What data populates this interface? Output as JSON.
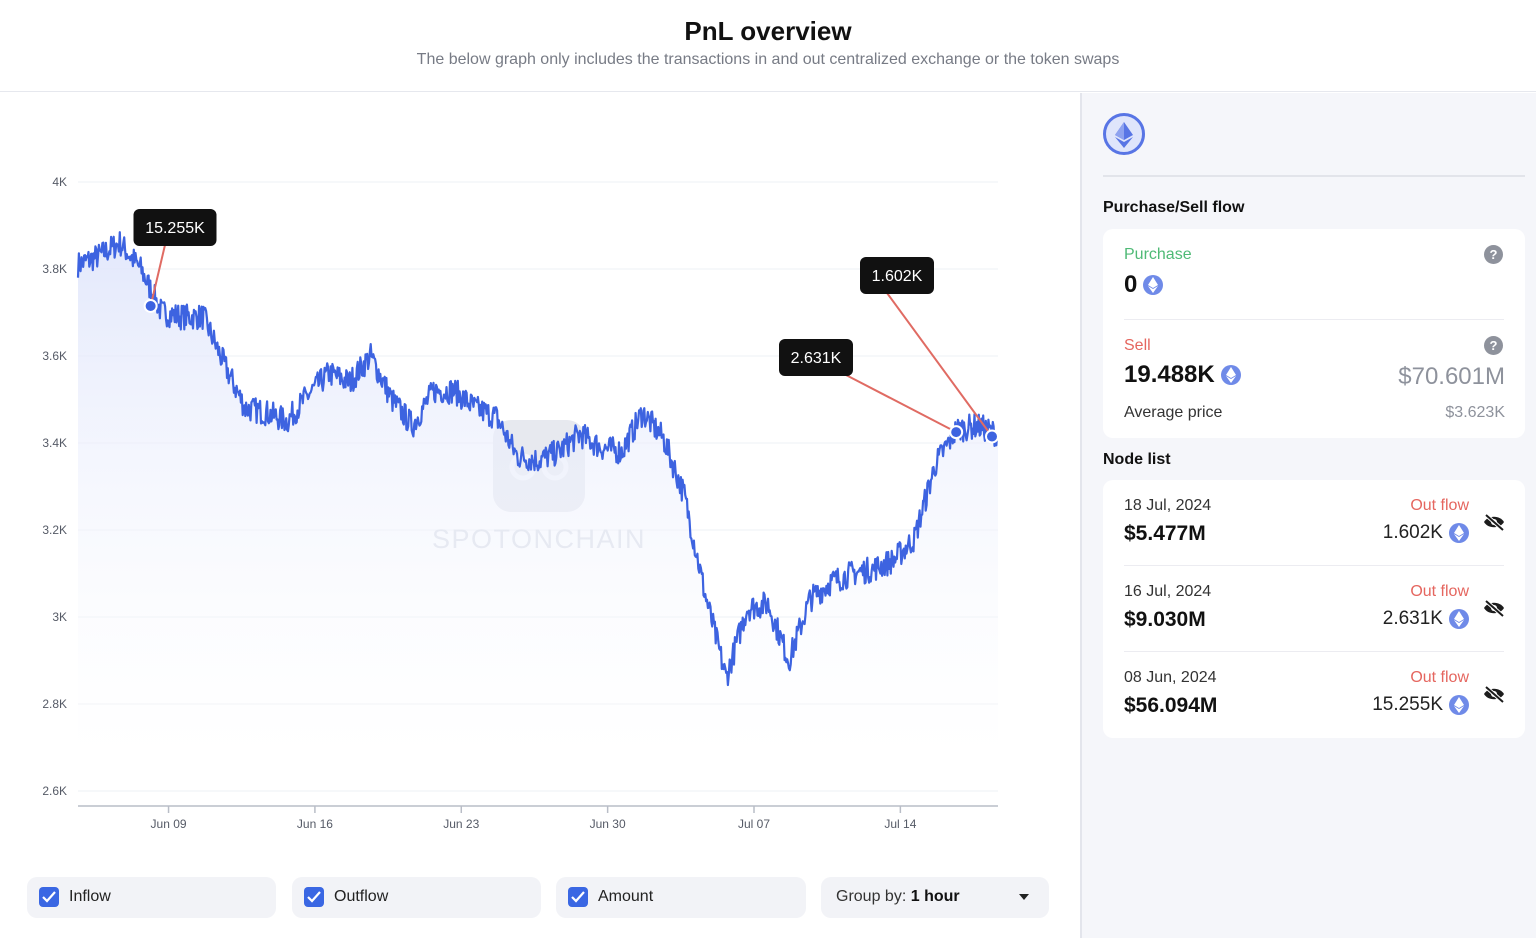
{
  "header": {
    "title": "PnL overview",
    "subtitle": "The below graph only includes the transactions in and out centralized exchange or the token swaps"
  },
  "chart_data": {
    "type": "line",
    "title": "",
    "xlabel": "",
    "ylabel": "",
    "ylim": [
      2600,
      4000
    ],
    "x_ticks": [
      "Jun 09",
      "Jun 16",
      "Jun 23",
      "Jun 30",
      "Jul 07",
      "Jul 14"
    ],
    "y_ticks": [
      "4K",
      "3.8K",
      "3.6K",
      "3.4K",
      "3.2K",
      "3K",
      "2.8K",
      "2.6K"
    ],
    "y_tick_values": [
      4000,
      3800,
      3600,
      3400,
      3200,
      3000,
      2800,
      2600
    ],
    "x_range": [
      "2024-06-04",
      "2024-07-18"
    ],
    "grid": true,
    "series": [
      {
        "color": "#3d63e0",
        "points": [
          [
            "2024-06-04",
            3810
          ],
          [
            "2024-06-05",
            3830
          ],
          [
            "2024-06-06",
            3860
          ],
          [
            "2024-06-07",
            3800
          ],
          [
            "2024-06-08",
            3700
          ],
          [
            "2024-06-09",
            3690
          ],
          [
            "2024-06-10",
            3690
          ],
          [
            "2024-06-11",
            3580
          ],
          [
            "2024-06-12",
            3480
          ],
          [
            "2024-06-13",
            3470
          ],
          [
            "2024-06-14",
            3450
          ],
          [
            "2024-06-15",
            3510
          ],
          [
            "2024-06-16",
            3560
          ],
          [
            "2024-06-17",
            3540
          ],
          [
            "2024-06-18",
            3600
          ],
          [
            "2024-06-19",
            3500
          ],
          [
            "2024-06-20",
            3440
          ],
          [
            "2024-06-21",
            3520
          ],
          [
            "2024-06-22",
            3520
          ],
          [
            "2024-06-23",
            3480
          ],
          [
            "2024-06-24",
            3460
          ],
          [
            "2024-06-25",
            3370
          ],
          [
            "2024-06-26",
            3360
          ],
          [
            "2024-06-27",
            3380
          ],
          [
            "2024-06-28",
            3420
          ],
          [
            "2024-06-29",
            3390
          ],
          [
            "2024-06-30",
            3380
          ],
          [
            "2024-07-01",
            3470
          ],
          [
            "2024-07-02",
            3410
          ],
          [
            "2024-07-03",
            3280
          ],
          [
            "2024-07-04",
            3050
          ],
          [
            "2024-07-05",
            2860
          ],
          [
            "2024-07-06",
            3020
          ],
          [
            "2024-07-07",
            3030
          ],
          [
            "2024-07-08",
            2900
          ],
          [
            "2024-07-09",
            3040
          ],
          [
            "2024-07-10",
            3080
          ],
          [
            "2024-07-11",
            3100
          ],
          [
            "2024-07-12",
            3110
          ],
          [
            "2024-07-13",
            3130
          ],
          [
            "2024-07-14",
            3180
          ],
          [
            "2024-07-15",
            3350
          ],
          [
            "2024-07-16",
            3430
          ],
          [
            "2024-07-17",
            3440
          ],
          [
            "2024-07-18",
            3420
          ]
        ]
      }
    ],
    "annotations": [
      {
        "date": "2024-06-08",
        "y": 3715,
        "label": "15.255K"
      },
      {
        "date": "2024-07-16",
        "y": 3425,
        "label": "2.631K"
      },
      {
        "date": "2024-07-18",
        "y": 3415,
        "label": "1.602K"
      }
    ],
    "watermark": "SPOTONCHAIN"
  },
  "filters": {
    "inflow": {
      "label": "Inflow",
      "checked": true
    },
    "outflow": {
      "label": "Outflow",
      "checked": true
    },
    "amount": {
      "label": "Amount",
      "checked": true
    },
    "group_by": {
      "label": "Group by:",
      "value": "1 hour"
    }
  },
  "sidebar": {
    "purchase_sell_title": "Purchase/Sell flow",
    "purchase": {
      "label": "Purchase",
      "amount": "0",
      "label_color": "#4fba76"
    },
    "sell": {
      "label": "Sell",
      "amount": "19.488K",
      "usd": "$70.601M",
      "label_color": "#e5665f"
    },
    "average_price": {
      "label": "Average price",
      "value": "$3.623K"
    },
    "node_list_title": "Node list",
    "nodes": [
      {
        "date": "18 Jul, 2024",
        "usd": "$5.477M",
        "flow": "Out flow",
        "amount": "1.602K"
      },
      {
        "date": "16 Jul, 2024",
        "usd": "$9.030M",
        "flow": "Out flow",
        "amount": "2.631K"
      },
      {
        "date": "08 Jun, 2024",
        "usd": "$56.094M",
        "flow": "Out flow",
        "amount": "15.255K"
      }
    ],
    "help_glyph": "?",
    "accent": "#3a67e3"
  }
}
